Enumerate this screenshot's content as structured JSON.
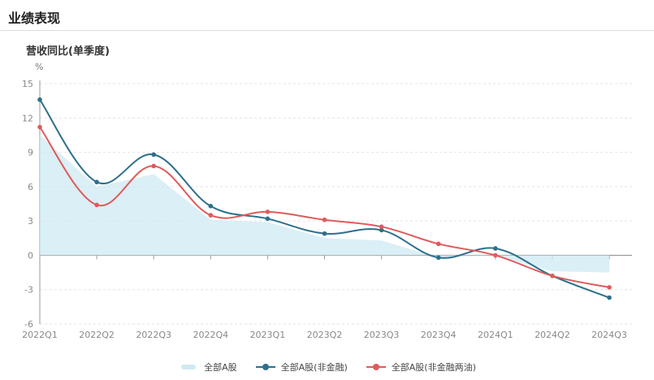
{
  "section": {
    "title": "业绩表现"
  },
  "chart_data": {
    "type": "line",
    "title": "营收同比(单季度)",
    "ylabel": "%",
    "xlabel": "",
    "categories": [
      "2022Q1",
      "2022Q2",
      "2022Q3",
      "2022Q4",
      "2023Q1",
      "2023Q2",
      "2023Q3",
      "2023Q4",
      "2024Q1",
      "2024Q2",
      "2024Q3"
    ],
    "ylim": [
      -6,
      15
    ],
    "yticks": [
      15,
      12,
      9,
      6,
      3,
      0,
      -3,
      -6
    ],
    "grid": true,
    "legend_position": "bottom-center",
    "series": [
      {
        "name": "全部A股",
        "style": "area",
        "color": "#cfe9f3",
        "values": [
          10.5,
          6.0,
          7.1,
          3.1,
          2.9,
          1.5,
          1.3,
          -0.2,
          0.0,
          -1.4,
          -1.5
        ]
      },
      {
        "name": "全部A股(非金融)",
        "style": "line",
        "color": "#2d6f8c",
        "values": [
          13.6,
          6.4,
          8.8,
          4.3,
          3.2,
          1.9,
          2.2,
          -0.2,
          0.6,
          -1.8,
          -3.7
        ]
      },
      {
        "name": "全部A股(非金融两油)",
        "style": "line",
        "color": "#e05a5a",
        "values": [
          11.2,
          4.4,
          7.8,
          3.5,
          3.8,
          3.1,
          2.5,
          1.0,
          0.0,
          -1.8,
          -2.8
        ]
      }
    ]
  }
}
